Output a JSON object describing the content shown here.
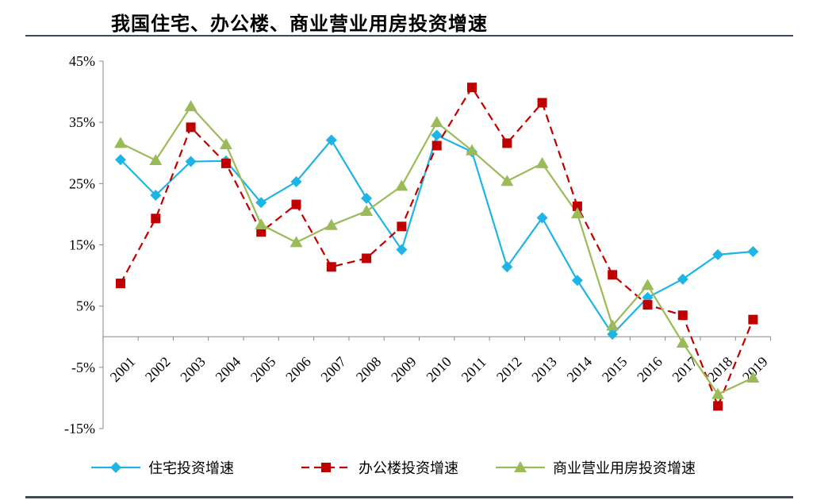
{
  "title": "我国住宅、办公楼、商业营业用房投资增速",
  "chart_data": {
    "type": "line",
    "categories": [
      "2001",
      "2002",
      "2003",
      "2004",
      "2005",
      "2006",
      "2007",
      "2008",
      "2009",
      "2010",
      "2011",
      "2012",
      "2013",
      "2014",
      "2015",
      "2016",
      "2017",
      "2018",
      "2019"
    ],
    "ylim": [
      -15,
      45
    ],
    "yticks": [
      -15,
      -5,
      5,
      15,
      25,
      35,
      45
    ],
    "ytick_labels": [
      "-15%",
      "-5%",
      "5%",
      "15%",
      "25%",
      "35%",
      "45%"
    ],
    "legend_position": "bottom",
    "series": [
      {
        "name": "住宅投资增速",
        "color": "#1fb4e6",
        "marker": "diamond",
        "dash": "solid",
        "values": [
          28.9,
          23.1,
          28.6,
          28.7,
          21.9,
          25.3,
          32.1,
          22.6,
          14.2,
          32.9,
          30.2,
          11.4,
          19.4,
          9.2,
          0.4,
          6.4,
          9.4,
          13.4,
          13.9
        ]
      },
      {
        "name": "办公楼投资增速",
        "color": "#c00000",
        "marker": "square",
        "dash": "dashed",
        "values": [
          8.7,
          19.3,
          34.2,
          28.3,
          17.1,
          21.6,
          11.4,
          12.8,
          18.0,
          31.2,
          40.7,
          31.6,
          38.2,
          21.3,
          10.1,
          5.2,
          3.5,
          -11.3,
          2.8
        ]
      },
      {
        "name": "商业营业用房投资增速",
        "color": "#9bbb59",
        "marker": "triangle",
        "dash": "solid",
        "values": [
          31.6,
          28.8,
          37.6,
          31.4,
          18.3,
          15.4,
          18.2,
          20.5,
          24.6,
          35.0,
          30.4,
          25.4,
          28.3,
          20.1,
          1.8,
          8.4,
          -1.0,
          -9.4,
          -6.7
        ]
      }
    ]
  }
}
